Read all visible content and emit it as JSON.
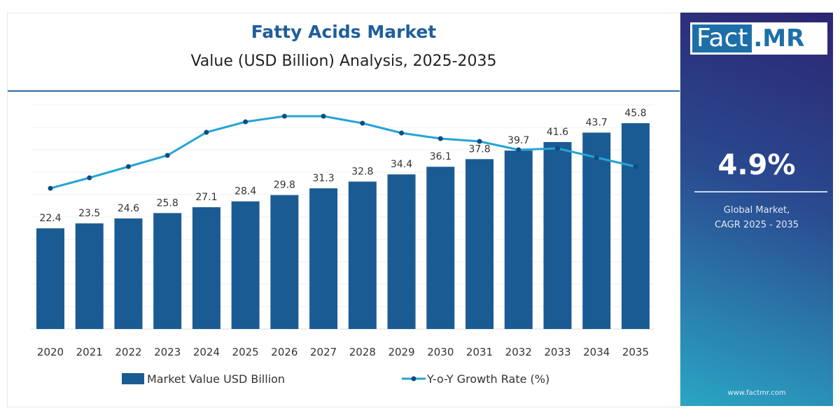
{
  "header": {
    "title": "Fatty Acids Market",
    "subtitle": "Value (USD Billion) Analysis, 2025-2035"
  },
  "side_panel": {
    "logo": "Fact.MR",
    "logo_part1": "Fact",
    "logo_part2": ".MR",
    "cagr_value": "4.9%",
    "cagr_label_line1": "Global Market,",
    "cagr_label_line2": "CAGR 2025 - 2035",
    "url": "www.factmr.com"
  },
  "colors": {
    "bar": "#1b5b93",
    "line": "#23a4d8",
    "marker": "#0f4c80",
    "title": "#1f5f9a"
  },
  "chart_data": {
    "type": "bar",
    "title": "Fatty Acids Market",
    "subtitle": "Value (USD Billion) Analysis, 2025-2035",
    "categories": [
      "2020",
      "2021",
      "2022",
      "2023",
      "2024",
      "2025",
      "2026",
      "2027",
      "2028",
      "2029",
      "2030",
      "2031",
      "2032",
      "2033",
      "2034",
      "2035"
    ],
    "series": [
      {
        "name": "Market Value USD Billion",
        "type": "bar",
        "values": [
          22.4,
          23.5,
          24.6,
          25.8,
          27.1,
          28.4,
          29.8,
          31.3,
          32.8,
          34.4,
          36.1,
          37.8,
          39.7,
          41.6,
          43.7,
          45.8
        ],
        "value_labels": [
          "22.4",
          "23.5",
          "24.6",
          "25.8",
          "27.1",
          "28.4",
          "29.8",
          "31.3",
          "32.8",
          "34.4",
          "36.1",
          "37.8",
          "39.7",
          "41.6",
          "43.7",
          "45.8"
        ]
      },
      {
        "name": "Y-o-Y Growth Rate (%)",
        "type": "line",
        "values": [
          4.0,
          4.15,
          4.31,
          4.47,
          4.8,
          4.95,
          5.03,
          5.03,
          4.93,
          4.79,
          4.71,
          4.67,
          4.55,
          4.57,
          4.44,
          4.31
        ],
        "note_estimated": "unlabeled, relative shape only"
      }
    ],
    "legend": {
      "position": "bottom",
      "items": [
        "Market Value USD Billion",
        "Y-o-Y Growth Rate (%)"
      ]
    },
    "grid": true,
    "ylim": [
      0,
      50
    ]
  }
}
